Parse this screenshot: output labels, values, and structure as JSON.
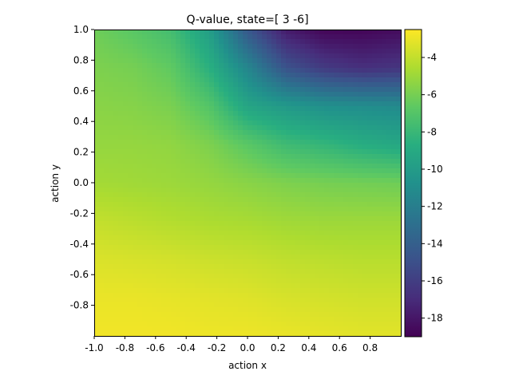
{
  "chart_data": {
    "type": "heatmap",
    "title": "Q-value, state=[ 3 -6]",
    "xlabel": "action x",
    "ylabel": "action y",
    "xlim": [
      -1.0,
      1.0
    ],
    "ylim": [
      -1.0,
      1.0
    ],
    "x_ticks": [
      "-1.0",
      "-0.8",
      "-0.6",
      "-0.4",
      "-0.2",
      "0.0",
      "0.2",
      "0.4",
      "0.6",
      "0.8"
    ],
    "y_ticks": [
      "1.0",
      "0.8",
      "0.6",
      "0.4",
      "0.2",
      "0.0",
      "-0.2",
      "-0.4",
      "-0.6",
      "-0.8"
    ],
    "colormap": "viridis",
    "colorbar": {
      "vmin": -19.0,
      "vmax": -2.5,
      "ticks": [
        "-4",
        "-6",
        "-8",
        "-10",
        "-12",
        "-14",
        "-16",
        "-18"
      ]
    },
    "grid": false,
    "x": [
      -1.0,
      -0.75,
      -0.5,
      -0.25,
      0.0,
      0.25,
      0.5,
      0.75,
      1.0
    ],
    "y": [
      1.0,
      0.75,
      0.5,
      0.25,
      0.0,
      -0.25,
      -0.5,
      -0.75,
      -1.0
    ],
    "z": [
      [
        -6.2,
        -6.8,
        -7.6,
        -9.8,
        -14.5,
        -17.8,
        -18.8,
        -18.8,
        -18.5
      ],
      [
        -5.8,
        -6.0,
        -6.6,
        -8.6,
        -11.5,
        -14.8,
        -16.2,
        -16.8,
        -16.5
      ],
      [
        -5.5,
        -5.6,
        -5.9,
        -7.0,
        -9.4,
        -10.2,
        -10.8,
        -11.0,
        -11.2
      ],
      [
        -5.2,
        -5.2,
        -5.3,
        -5.8,
        -6.8,
        -7.8,
        -8.2,
        -8.8,
        -9.2
      ],
      [
        -4.8,
        -4.9,
        -5.0,
        -5.2,
        -5.5,
        -5.8,
        -6.0,
        -6.1,
        -6.2
      ],
      [
        -4.0,
        -4.2,
        -4.4,
        -4.6,
        -4.7,
        -4.9,
        -5.0,
        -5.0,
        -5.0
      ],
      [
        -3.4,
        -3.5,
        -3.6,
        -3.8,
        -3.9,
        -4.1,
        -4.2,
        -4.3,
        -4.3
      ],
      [
        -3.0,
        -3.0,
        -3.1,
        -3.2,
        -3.3,
        -3.5,
        -3.6,
        -3.7,
        -3.7
      ],
      [
        -2.8,
        -2.8,
        -2.8,
        -2.9,
        -2.9,
        -3.0,
        -3.1,
        -3.2,
        -3.2
      ]
    ]
  }
}
